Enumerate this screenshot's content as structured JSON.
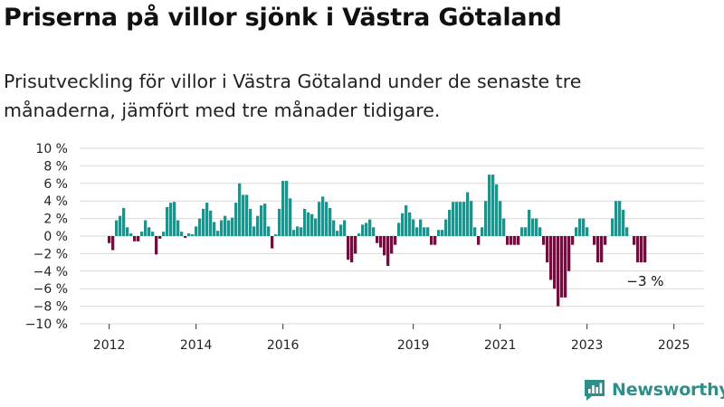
{
  "header": {
    "title": "Priserna på villor sjönk i Västra Götaland",
    "subtitle": "Prisutveckling för villor i Västra Götaland under de senaste tre månaderna, jämfört med tre månader tidigare."
  },
  "brand": {
    "name": "Newsworthy"
  },
  "colors": {
    "positive": "#00a096",
    "negative": "#8b0044",
    "grid": "#d9d9d9",
    "brand": "#2d8f8a"
  },
  "chart_data": {
    "type": "bar",
    "title": "",
    "xlabel": "",
    "ylabel": "",
    "ylim": [
      -10,
      10
    ],
    "yticks": [
      {
        "value": 10,
        "label": "10 %"
      },
      {
        "value": 8,
        "label": "8 %"
      },
      {
        "value": 6,
        "label": "6 %"
      },
      {
        "value": 4,
        "label": "4 %"
      },
      {
        "value": 2,
        "label": "2 %"
      },
      {
        "value": 0,
        "label": "0 %"
      },
      {
        "value": -2,
        "label": "−2 %"
      },
      {
        "value": -4,
        "label": "−4 %"
      },
      {
        "value": -6,
        "label": "−6 %"
      },
      {
        "value": -8,
        "label": "−8 %"
      },
      {
        "value": -10,
        "label": "−10 %"
      }
    ],
    "xticks": [
      "2012",
      "2014",
      "2016",
      "2019",
      "2021",
      "2023",
      "2025"
    ],
    "start": "2012-01",
    "values": [
      -0.8,
      -1.6,
      1.8,
      2.3,
      3.2,
      1.0,
      0.3,
      -0.6,
      -0.6,
      0.5,
      1.8,
      1.0,
      0.5,
      -2.1,
      -0.3,
      0.5,
      3.3,
      3.8,
      3.9,
      1.8,
      0.5,
      -0.2,
      0.3,
      0.2,
      1.1,
      2.0,
      3.1,
      3.8,
      2.9,
      1.6,
      0.6,
      1.8,
      2.3,
      1.8,
      2.1,
      3.8,
      6.0,
      4.7,
      4.7,
      3.1,
      1.1,
      2.3,
      3.5,
      3.7,
      1.1,
      -1.4,
      0.2,
      3.1,
      6.3,
      6.3,
      4.3,
      0.7,
      1.1,
      1.0,
      3.1,
      2.7,
      2.5,
      2.0,
      3.9,
      4.5,
      3.9,
      3.2,
      1.8,
      0.6,
      1.3,
      1.8,
      -2.7,
      -3.0,
      -2.0,
      0.3,
      1.3,
      1.5,
      1.9,
      1.0,
      -0.8,
      -1.3,
      -2.2,
      -3.4,
      -2.0,
      -1.0,
      1.5,
      2.6,
      3.5,
      2.7,
      1.9,
      1.0,
      1.9,
      1.0,
      1.0,
      -1.0,
      -1.0,
      0.7,
      0.7,
      1.9,
      3.0,
      3.9,
      3.9,
      3.9,
      3.9,
      5.0,
      4.0,
      1.0,
      -1.0,
      1.0,
      4.0,
      7.0,
      7.0,
      5.9,
      4.0,
      2.0,
      -1.0,
      -1.0,
      -1.0,
      -1.0,
      1.0,
      1.0,
      3.0,
      2.0,
      2.0,
      1.0,
      -1.0,
      -3.0,
      -5.0,
      -6.0,
      -8.0,
      -7.0,
      -7.0,
      -4.0,
      -1.0,
      1.0,
      2.0,
      2.0,
      1.0,
      0.0,
      -1.0,
      -3.0,
      -3.0,
      -1.0,
      0.0,
      2.0,
      4.0,
      4.0,
      3.0,
      1.0,
      0.0,
      -1.0,
      -3.0,
      -3.0,
      -3.0
    ],
    "annotation": {
      "label": "−3 %"
    }
  }
}
